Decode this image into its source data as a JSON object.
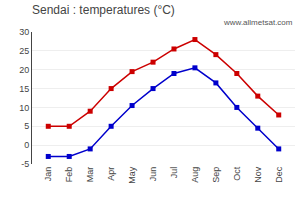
{
  "chart_data": {
    "type": "line",
    "title": "Sendai : temperatures (°C)",
    "categories": [
      "Jan",
      "Feb",
      "Mar",
      "Apr",
      "May",
      "Jun",
      "Jul",
      "Aug",
      "Sep",
      "Oct",
      "Nov",
      "Dec"
    ],
    "series": [
      {
        "color": "#cc0000",
        "values": [
          5,
          5,
          9,
          15,
          19.5,
          22,
          25.5,
          28,
          24,
          19,
          13,
          8
        ]
      },
      {
        "color": "#0000cc",
        "values": [
          -3,
          -3,
          -1,
          5,
          10.5,
          15,
          19,
          20.5,
          16.5,
          10,
          4.5,
          -1
        ]
      }
    ],
    "marker": "square",
    "ylim": [
      -5,
      30
    ],
    "yticks": [
      -5,
      0,
      5,
      10,
      15,
      20,
      25,
      30
    ],
    "grid": true,
    "annotations": [
      "www.allmetsat.com"
    ]
  }
}
